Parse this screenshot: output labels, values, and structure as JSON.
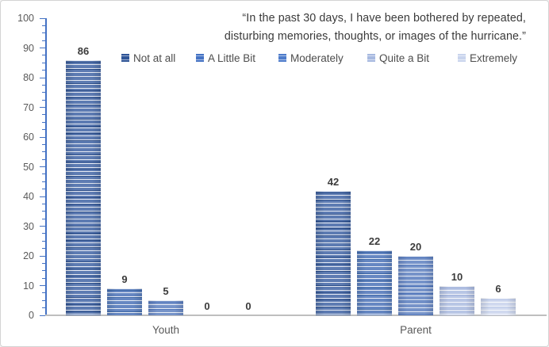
{
  "title": {
    "line1": "“In the past 30 days, I have been bothered by repeated,",
    "line2": "disturbing memories, thoughts, or images of the hurricane.”"
  },
  "chart_data": {
    "type": "bar",
    "title": "“In the past 30 days, I have been bothered by repeated, disturbing memories, thoughts, or images of the hurricane.”",
    "categories": [
      "Youth",
      "Parent"
    ],
    "series": [
      {
        "name": "Not at all",
        "values": [
          86,
          42
        ],
        "legend_color": "#2F5597",
        "bar_base": "#5373AD",
        "stripe_dark": "rgba(26,62,125,0.85)",
        "stripe_light": "rgba(255,255,255,0.85)"
      },
      {
        "name": "A Little Bit",
        "values": [
          9,
          22
        ],
        "legend_color": "#4472C4",
        "bar_base": "#5C80BE",
        "stripe_dark": "rgba(42,88,156,0.80)",
        "stripe_light": "rgba(255,255,255,0.85)"
      },
      {
        "name": "Moderately",
        "values": [
          5,
          20
        ],
        "legend_color": "#4E7CCB",
        "bar_base": "#6D8CC6",
        "stripe_dark": "rgba(62,104,180,0.75)",
        "stripe_light": "rgba(255,255,255,0.85)"
      },
      {
        "name": "Quite a Bit",
        "values": [
          0,
          10
        ],
        "legend_color": "#A7B9E0",
        "bar_base": "#B4C2E3",
        "stripe_dark": "rgba(140,162,212,0.70)",
        "stripe_light": "rgba(255,255,255,0.90)"
      },
      {
        "name": "Extremely",
        "values": [
          0,
          6
        ],
        "legend_color": "#C9D4ED",
        "bar_base": "#CDD7EE",
        "stripe_dark": "rgba(172,189,226,0.70)",
        "stripe_light": "rgba(255,255,255,0.90)"
      }
    ],
    "y_axis": {
      "min": 0,
      "max": 100,
      "major_step": 10,
      "minor_step": 2.5
    },
    "ylim": [
      0,
      100
    ],
    "grid": false,
    "data_labels": true,
    "legend_position": "top",
    "axis_color": "#4472C4",
    "baseline_color": "#BFBFBF",
    "tick_label_color": "#595959",
    "value_label_color": "#3B3B3B"
  }
}
